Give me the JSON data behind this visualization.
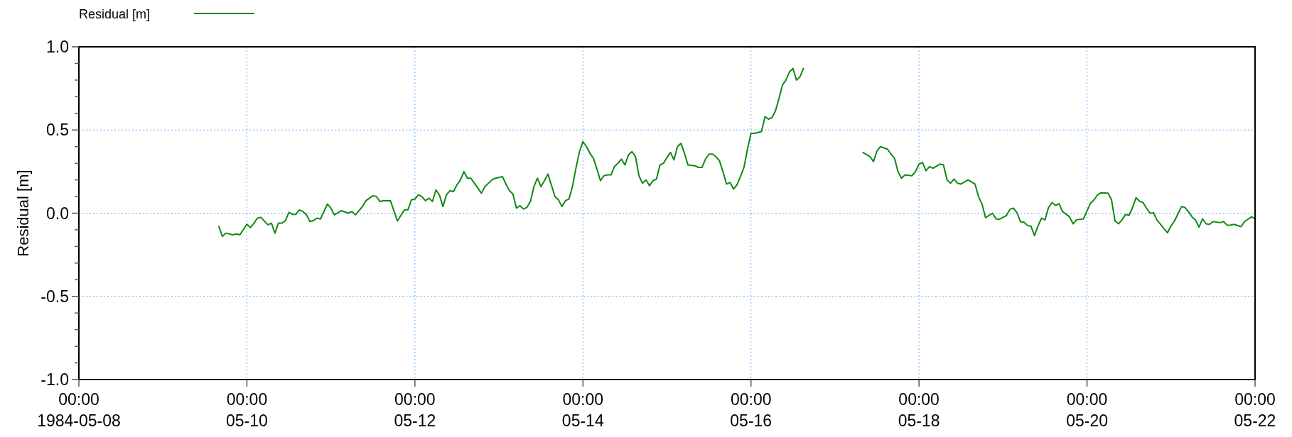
{
  "chart_data": {
    "type": "line",
    "ylabel": "Residual [m]",
    "xlim": [
      "1984-05-08T00:00",
      "1984-05-22T00:00"
    ],
    "ylim": [
      -1,
      1
    ],
    "xticks": [
      {
        "value": "1984-05-08T00:00",
        "label": "00:00\n1984-05-08"
      },
      {
        "value": "1984-05-10T00:00",
        "label": "00:00\n05-10"
      },
      {
        "value": "1984-05-12T00:00",
        "label": "00:00\n05-12"
      },
      {
        "value": "1984-05-14T00:00",
        "label": "00:00\n05-14"
      },
      {
        "value": "1984-05-16T00:00",
        "label": "00:00\n05-16"
      },
      {
        "value": "1984-05-18T00:00",
        "label": "00:00\n05-18"
      },
      {
        "value": "1984-05-20T00:00",
        "label": "00:00\n05-20"
      },
      {
        "value": "1984-05-22T00:00",
        "label": "00:00\n05-22"
      }
    ],
    "yticks": [
      {
        "value": -1,
        "label": "-1.0"
      },
      {
        "value": -0.9,
        "label": null
      },
      {
        "value": -0.8,
        "label": null
      },
      {
        "value": -0.7,
        "label": null
      },
      {
        "value": -0.6,
        "label": null
      },
      {
        "value": -0.5,
        "label": "-0.5"
      },
      {
        "value": -0.4,
        "label": null
      },
      {
        "value": -0.3,
        "label": null
      },
      {
        "value": -0.2,
        "label": null
      },
      {
        "value": -0.1,
        "label": null
      },
      {
        "value": 0,
        "label": "0.0"
      },
      {
        "value": 0.1,
        "label": null
      },
      {
        "value": 0.2,
        "label": null
      },
      {
        "value": 0.3,
        "label": null
      },
      {
        "value": 0.4,
        "label": null
      },
      {
        "value": 0.5,
        "label": "0.5"
      },
      {
        "value": 0.6,
        "label": null
      },
      {
        "value": 0.7,
        "label": null
      },
      {
        "value": 0.8,
        "label": null
      },
      {
        "value": 0.9,
        "label": null
      },
      {
        "value": 1,
        "label": "1.0"
      }
    ],
    "grid": true,
    "legend": "top left",
    "line_style": "solid",
    "marker": "none",
    "series": [
      {
        "name": "Residual [m]",
        "color": "#118811",
        "x": [
          "1984-05-09T16:00",
          "1984-05-09T17:00",
          "1984-05-09T18:00",
          "1984-05-09T20:00",
          "1984-05-09T21:00",
          "1984-05-09T22:00",
          "1984-05-10T00:00",
          "1984-05-10T01:00",
          "1984-05-10T02:00",
          "1984-05-10T03:00",
          "1984-05-10T04:00",
          "1984-05-10T06:00",
          "1984-05-10T07:00",
          "1984-05-10T08:00",
          "1984-05-10T09:00",
          "1984-05-10T10:00",
          "1984-05-10T11:00",
          "1984-05-10T12:00",
          "1984-05-10T13:00",
          "1984-05-10T14:00",
          "1984-05-10T15:00",
          "1984-05-10T16:00",
          "1984-05-10T17:00",
          "1984-05-10T18:00",
          "1984-05-10T19:00",
          "1984-05-10T20:00",
          "1984-05-10T21:00",
          "1984-05-10T23:00",
          "1984-05-11T00:00",
          "1984-05-11T01:00",
          "1984-05-11T03:00",
          "1984-05-11T05:00",
          "1984-05-11T06:00",
          "1984-05-11T07:00",
          "1984-05-11T09:00",
          "1984-05-11T10:00",
          "1984-05-11T12:00",
          "1984-05-11T13:00",
          "1984-05-11T14:00",
          "1984-05-11T15:00",
          "1984-05-11T17:00",
          "1984-05-11T19:00",
          "1984-05-11T21:00",
          "1984-05-11T22:00",
          "1984-05-11T23:00",
          "1984-05-12T00:00",
          "1984-05-12T01:00",
          "1984-05-12T02:00",
          "1984-05-12T03:00",
          "1984-05-12T04:00",
          "1984-05-12T05:00",
          "1984-05-12T06:00",
          "1984-05-12T07:00",
          "1984-05-12T08:00",
          "1984-05-12T09:00",
          "1984-05-12T10:00",
          "1984-05-12T11:00",
          "1984-05-12T12:00",
          "1984-05-12T13:00",
          "1984-05-12T14:00",
          "1984-05-12T15:00",
          "1984-05-12T16:00",
          "1984-05-12T19:00",
          "1984-05-12T20:00",
          "1984-05-12T22:00",
          "1984-05-12T23:00",
          "1984-05-13T01:00",
          "1984-05-13T02:00",
          "1984-05-13T03:00",
          "1984-05-13T04:00",
          "1984-05-13T05:00",
          "1984-05-13T06:00",
          "1984-05-13T07:00",
          "1984-05-13T08:00",
          "1984-05-13T09:00",
          "1984-05-13T10:00",
          "1984-05-13T11:00",
          "1984-05-13T12:00",
          "1984-05-13T13:00",
          "1984-05-13T14:00",
          "1984-05-13T16:00",
          "1984-05-13T17:00",
          "1984-05-13T18:00",
          "1984-05-13T19:00",
          "1984-05-13T20:00",
          "1984-05-13T21:00",
          "1984-05-13T22:00",
          "1984-05-13T23:00",
          "1984-05-14T00:00",
          "1984-05-14T01:00",
          "1984-05-14T02:00",
          "1984-05-14T03:00",
          "1984-05-14T04:00",
          "1984-05-14T05:00",
          "1984-05-14T06:00",
          "1984-05-14T07:00",
          "1984-05-14T08:00",
          "1984-05-14T09:00",
          "1984-05-14T10:00",
          "1984-05-14T11:00",
          "1984-05-14T12:00",
          "1984-05-14T13:00",
          "1984-05-14T14:00",
          "1984-05-14T15:00",
          "1984-05-14T16:00",
          "1984-05-14T17:00",
          "1984-05-14T18:00",
          "1984-05-14T19:00",
          "1984-05-14T20:00",
          "1984-05-14T21:00",
          "1984-05-14T22:00",
          "1984-05-14T23:00",
          "1984-05-15T00:00",
          "1984-05-15T01:00",
          "1984-05-15T02:00",
          "1984-05-15T03:00",
          "1984-05-15T04:00",
          "1984-05-15T05:00",
          "1984-05-15T06:00",
          "1984-05-15T08:00",
          "1984-05-15T09:00",
          "1984-05-15T10:00",
          "1984-05-15T11:00",
          "1984-05-15T12:00",
          "1984-05-15T13:00",
          "1984-05-15T14:00",
          "1984-05-15T15:00",
          "1984-05-15T16:00",
          "1984-05-15T17:00",
          "1984-05-15T18:00",
          "1984-05-15T19:00",
          "1984-05-15T20:00",
          "1984-05-15T21:00",
          "1984-05-15T22:00",
          "1984-05-15T23:00",
          "1984-05-16T00:00",
          "1984-05-16T01:00",
          "1984-05-16T02:00",
          "1984-05-16T03:00",
          "1984-05-16T04:00",
          "1984-05-16T05:00",
          "1984-05-16T06:00",
          "1984-05-16T07:00",
          "1984-05-16T08:00",
          "1984-05-16T09:00",
          "1984-05-16T10:00",
          "1984-05-16T11:00",
          "1984-05-16T12:00",
          "1984-05-16T13:00",
          "1984-05-16T14:00",
          "1984-05-16T15:00",
          "1984-05-16T23:00",
          "1984-05-17T08:00",
          "1984-05-17T10:00",
          "1984-05-17T11:00",
          "1984-05-17T12:00",
          "1984-05-17T13:00",
          "1984-05-17T15:00",
          "1984-05-17T16:00",
          "1984-05-17T17:00",
          "1984-05-17T18:00",
          "1984-05-17T19:00",
          "1984-05-17T20:00",
          "1984-05-17T22:00",
          "1984-05-17T23:00",
          "1984-05-18T00:00",
          "1984-05-18T01:00",
          "1984-05-18T02:00",
          "1984-05-18T03:00",
          "1984-05-18T04:00",
          "1984-05-18T06:00",
          "1984-05-18T07:00",
          "1984-05-18T08:00",
          "1984-05-18T09:00",
          "1984-05-18T10:00",
          "1984-05-18T11:00",
          "1984-05-18T12:00",
          "1984-05-18T14:00",
          "1984-05-18T16:00",
          "1984-05-18T17:00",
          "1984-05-18T18:00",
          "1984-05-18T19:00",
          "1984-05-18T21:00",
          "1984-05-18T22:00",
          "1984-05-18T23:00",
          "1984-05-19T01:00",
          "1984-05-19T02:00",
          "1984-05-19T03:00",
          "1984-05-19T04:00",
          "1984-05-19T05:00",
          "1984-05-19T06:00",
          "1984-05-19T07:00",
          "1984-05-19T08:00",
          "1984-05-19T09:00",
          "1984-05-19T10:00",
          "1984-05-19T11:00",
          "1984-05-19T12:00",
          "1984-05-19T13:00",
          "1984-05-19T14:00",
          "1984-05-19T15:00",
          "1984-05-19T16:00",
          "1984-05-19T17:00",
          "1984-05-19T19:00",
          "1984-05-19T20:00",
          "1984-05-19T21:00",
          "1984-05-19T23:00",
          "1984-05-20T00:00",
          "1984-05-20T01:00",
          "1984-05-20T02:00",
          "1984-05-20T03:00",
          "1984-05-20T04:00",
          "1984-05-20T06:00",
          "1984-05-20T07:00",
          "1984-05-20T08:00",
          "1984-05-20T09:00",
          "1984-05-20T10:00",
          "1984-05-20T11:00",
          "1984-05-20T12:00",
          "1984-05-20T13:00",
          "1984-05-20T14:00",
          "1984-05-20T15:00",
          "1984-05-20T16:00",
          "1984-05-20T17:00",
          "1984-05-20T18:00",
          "1984-05-20T19:00",
          "1984-05-20T20:00",
          "1984-05-20T21:00",
          "1984-05-20T22:00",
          "1984-05-20T23:00",
          "1984-05-21T00:00",
          "1984-05-21T01:00",
          "1984-05-21T02:00",
          "1984-05-21T03:00",
          "1984-05-21T04:00",
          "1984-05-21T05:00",
          "1984-05-21T06:00",
          "1984-05-21T07:00",
          "1984-05-21T08:00",
          "1984-05-21T09:00",
          "1984-05-21T10:00",
          "1984-05-21T11:00",
          "1984-05-21T12:00",
          "1984-05-21T14:00",
          "1984-05-21T15:00",
          "1984-05-21T16:00",
          "1984-05-21T17:00",
          "1984-05-21T18:00",
          "1984-05-21T20:00",
          "1984-05-21T21:00",
          "1984-05-21T23:00",
          "1984-05-22T00:00"
        ],
        "values": [
          -0.08,
          -0.14,
          -0.12,
          -0.13,
          -0.125,
          -0.13,
          -0.066,
          -0.087,
          -0.06,
          -0.03,
          -0.025,
          -0.07,
          -0.06,
          -0.12,
          -0.06,
          -0.06,
          -0.045,
          0.005,
          -0.007,
          -0.007,
          0.02,
          0.01,
          -0.01,
          -0.05,
          -0.045,
          -0.03,
          -0.035,
          0.055,
          0.03,
          -0.01,
          0.015,
          0,
          0.01,
          -0.01,
          0.04,
          0.075,
          0.105,
          0.1,
          0.07,
          0.075,
          0.075,
          -0.047,
          0.02,
          0.02,
          0.08,
          0.085,
          0.11,
          0.1,
          0.075,
          0.09,
          0.07,
          0.14,
          0.11,
          0.04,
          0.11,
          0.135,
          0.13,
          0.17,
          0.2,
          0.25,
          0.21,
          0.21,
          0.12,
          0.16,
          0.2,
          0.21,
          0.22,
          0.175,
          0.135,
          0.115,
          0.03,
          0.045,
          0.025,
          0.035,
          0.07,
          0.16,
          0.21,
          0.16,
          0.195,
          0.235,
          0.1,
          0.08,
          0.04,
          0.075,
          0.085,
          0.16,
          0.27,
          0.37,
          0.43,
          0.4,
          0.36,
          0.33,
          0.265,
          0.195,
          0.225,
          0.23,
          0.23,
          0.28,
          0.3,
          0.325,
          0.29,
          0.35,
          0.37,
          0.34,
          0.225,
          0.18,
          0.2,
          0.165,
          0.195,
          0.205,
          0.29,
          0.3,
          0.335,
          0.365,
          0.32,
          0.4,
          0.42,
          0.36,
          0.29,
          0.285,
          0.275,
          0.275,
          0.325,
          0.355,
          0.355,
          0.34,
          0.315,
          0.25,
          0.175,
          0.185,
          0.145,
          0.17,
          0.22,
          0.275,
          0.385,
          0.48,
          0.48,
          0.485,
          0.49,
          0.58,
          0.565,
          0.575,
          0.615,
          0.69,
          0.77,
          0.8,
          0.85,
          0.87,
          0.8,
          0.82,
          0.87,
          null,
          0.365,
          0.34,
          0.31,
          0.375,
          0.4,
          0.385,
          0.355,
          0.33,
          0.25,
          0.21,
          0.23,
          0.225,
          0.25,
          0.295,
          0.305,
          0.255,
          0.28,
          0.27,
          0.295,
          0.29,
          0.2,
          0.18,
          0.205,
          0.18,
          0.175,
          0.2,
          0.175,
          0.1,
          0.055,
          -0.027,
          0,
          -0.034,
          -0.037,
          -0.013,
          0.024,
          0.03,
          0.003,
          -0.052,
          -0.054,
          -0.074,
          -0.079,
          -0.135,
          -0.076,
          -0.03,
          -0.04,
          0.034,
          0.064,
          0.047,
          0.057,
          0.01,
          -0.022,
          -0.064,
          -0.04,
          -0.034,
          0.013,
          0.06,
          0.08,
          0.11,
          0.123,
          0.121,
          0.08,
          -0.047,
          -0.064,
          -0.04,
          -0.008,
          -0.013,
          0.034,
          0.093,
          0.072,
          0.064,
          0.03,
          0,
          0.002,
          -0.042,
          -0.067,
          -0.093,
          -0.118,
          -0.076,
          -0.047,
          -0.003,
          0.04,
          0.034,
          0.008,
          -0.022,
          -0.042,
          -0.084,
          -0.034,
          -0.064,
          -0.067,
          -0.05,
          -0.057,
          -0.05,
          -0.072,
          -0.071,
          -0.067,
          -0.081,
          -0.05,
          -0.022,
          -0.034
        ]
      }
    ]
  }
}
